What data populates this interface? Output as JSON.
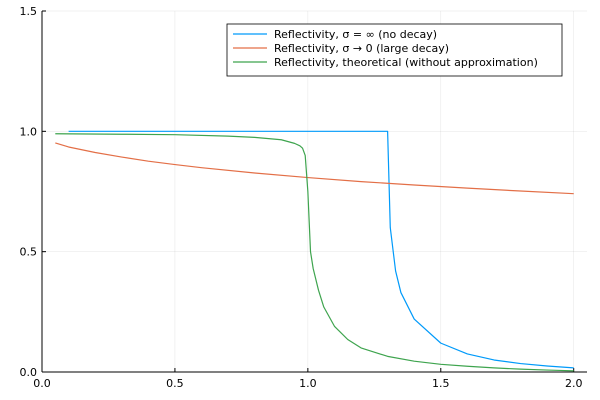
{
  "chart_data": {
    "type": "line",
    "title": "",
    "xlabel": "",
    "ylabel": "",
    "xlim": [
      0.0,
      2.05
    ],
    "ylim": [
      0.0,
      1.5
    ],
    "x_ticks": [
      0.0,
      0.5,
      1.0,
      1.5,
      2.0
    ],
    "x_tick_labels": [
      "0.0",
      "0.5",
      "1.0",
      "1.5",
      "2.0"
    ],
    "y_ticks": [
      0.0,
      0.5,
      1.0,
      1.5
    ],
    "y_tick_labels": [
      "0.0",
      "0.5",
      "1.0",
      "1.5"
    ],
    "grid": true,
    "legend_position": "top-right",
    "series": [
      {
        "name": "Reflectivity, σ = ∞ (no decay)",
        "color": "#009AFA",
        "x": [
          0.1,
          0.5,
          1.0,
          1.29,
          1.3,
          1.31,
          1.33,
          1.35,
          1.4,
          1.5,
          1.6,
          1.7,
          1.8,
          1.9,
          2.0
        ],
        "y": [
          1.0,
          1.0,
          1.0,
          1.0,
          1.0,
          0.6,
          0.42,
          0.33,
          0.22,
          0.12,
          0.075,
          0.05,
          0.035,
          0.025,
          0.017
        ]
      },
      {
        "name": "Reflectivity, σ → 0 (large decay)",
        "color": "#E36F47",
        "x": [
          0.05,
          0.1,
          0.2,
          0.3,
          0.4,
          0.5,
          0.6,
          0.8,
          1.0,
          1.2,
          1.4,
          1.6,
          1.8,
          2.0
        ],
        "y": [
          0.952,
          0.935,
          0.912,
          0.893,
          0.876,
          0.862,
          0.849,
          0.827,
          0.808,
          0.791,
          0.777,
          0.764,
          0.752,
          0.741
        ]
      },
      {
        "name": "Reflectivity, theoretical (without approximation)",
        "color": "#3EA44E",
        "x": [
          0.05,
          0.3,
          0.5,
          0.7,
          0.8,
          0.9,
          0.95,
          0.97,
          0.98,
          0.99,
          1.0,
          1.01,
          1.02,
          1.04,
          1.06,
          1.1,
          1.15,
          1.2,
          1.3,
          1.4,
          1.5,
          1.6,
          1.7,
          1.8,
          1.9,
          2.0
        ],
        "y": [
          0.99,
          0.988,
          0.986,
          0.98,
          0.975,
          0.965,
          0.95,
          0.94,
          0.93,
          0.9,
          0.75,
          0.5,
          0.43,
          0.34,
          0.27,
          0.19,
          0.135,
          0.1,
          0.065,
          0.045,
          0.032,
          0.024,
          0.017,
          0.012,
          0.008,
          0.005
        ]
      }
    ]
  }
}
